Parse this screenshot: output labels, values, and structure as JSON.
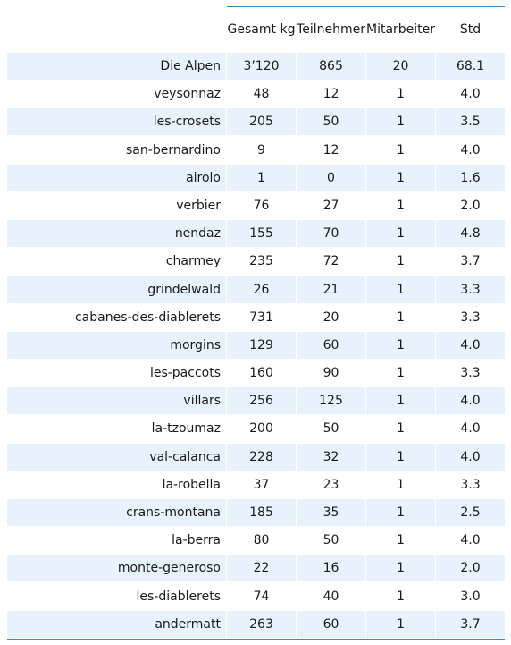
{
  "table": {
    "columns": [
      "Gesamt kg",
      "Teilnehmer",
      "Mitarbeiter",
      "Std"
    ],
    "rows": [
      {
        "label": "Die Alpen",
        "values": [
          "3’120",
          "865",
          "20",
          "68.1"
        ]
      },
      {
        "label": "veysonnaz",
        "values": [
          "48",
          "12",
          "1",
          "4.0"
        ]
      },
      {
        "label": "les-crosets",
        "values": [
          "205",
          "50",
          "1",
          "3.5"
        ]
      },
      {
        "label": "san-bernardino",
        "values": [
          "9",
          "12",
          "1",
          "4.0"
        ]
      },
      {
        "label": "airolo",
        "values": [
          "1",
          "0",
          "1",
          "1.6"
        ]
      },
      {
        "label": "verbier",
        "values": [
          "76",
          "27",
          "1",
          "2.0"
        ]
      },
      {
        "label": "nendaz",
        "values": [
          "155",
          "70",
          "1",
          "4.8"
        ]
      },
      {
        "label": "charmey",
        "values": [
          "235",
          "72",
          "1",
          "3.7"
        ]
      },
      {
        "label": "grindelwald",
        "values": [
          "26",
          "21",
          "1",
          "3.3"
        ]
      },
      {
        "label": "cabanes-des-diablerets",
        "values": [
          "731",
          "20",
          "1",
          "3.3"
        ]
      },
      {
        "label": "morgins",
        "values": [
          "129",
          "60",
          "1",
          "4.0"
        ]
      },
      {
        "label": "les-paccots",
        "values": [
          "160",
          "90",
          "1",
          "3.3"
        ]
      },
      {
        "label": "villars",
        "values": [
          "256",
          "125",
          "1",
          "4.0"
        ]
      },
      {
        "label": "la-tzoumaz",
        "values": [
          "200",
          "50",
          "1",
          "4.0"
        ]
      },
      {
        "label": "val-calanca",
        "values": [
          "228",
          "32",
          "1",
          "4.0"
        ]
      },
      {
        "label": "la-robella",
        "values": [
          "37",
          "23",
          "1",
          "3.3"
        ]
      },
      {
        "label": "crans-montana",
        "values": [
          "185",
          "35",
          "1",
          "2.5"
        ]
      },
      {
        "label": "la-berra",
        "values": [
          "80",
          "50",
          "1",
          "4.0"
        ]
      },
      {
        "label": "monte-generoso",
        "values": [
          "22",
          "16",
          "1",
          "2.0"
        ]
      },
      {
        "label": "les-diablerets",
        "values": [
          "74",
          "40",
          "1",
          "3.0"
        ]
      },
      {
        "label": "andermatt",
        "values": [
          "263",
          "60",
          "1",
          "3.7"
        ]
      }
    ]
  },
  "colors": {
    "rule": "#2f8fc4",
    "row_shade": "#e7f2fd",
    "text": "#1a1a1a"
  }
}
